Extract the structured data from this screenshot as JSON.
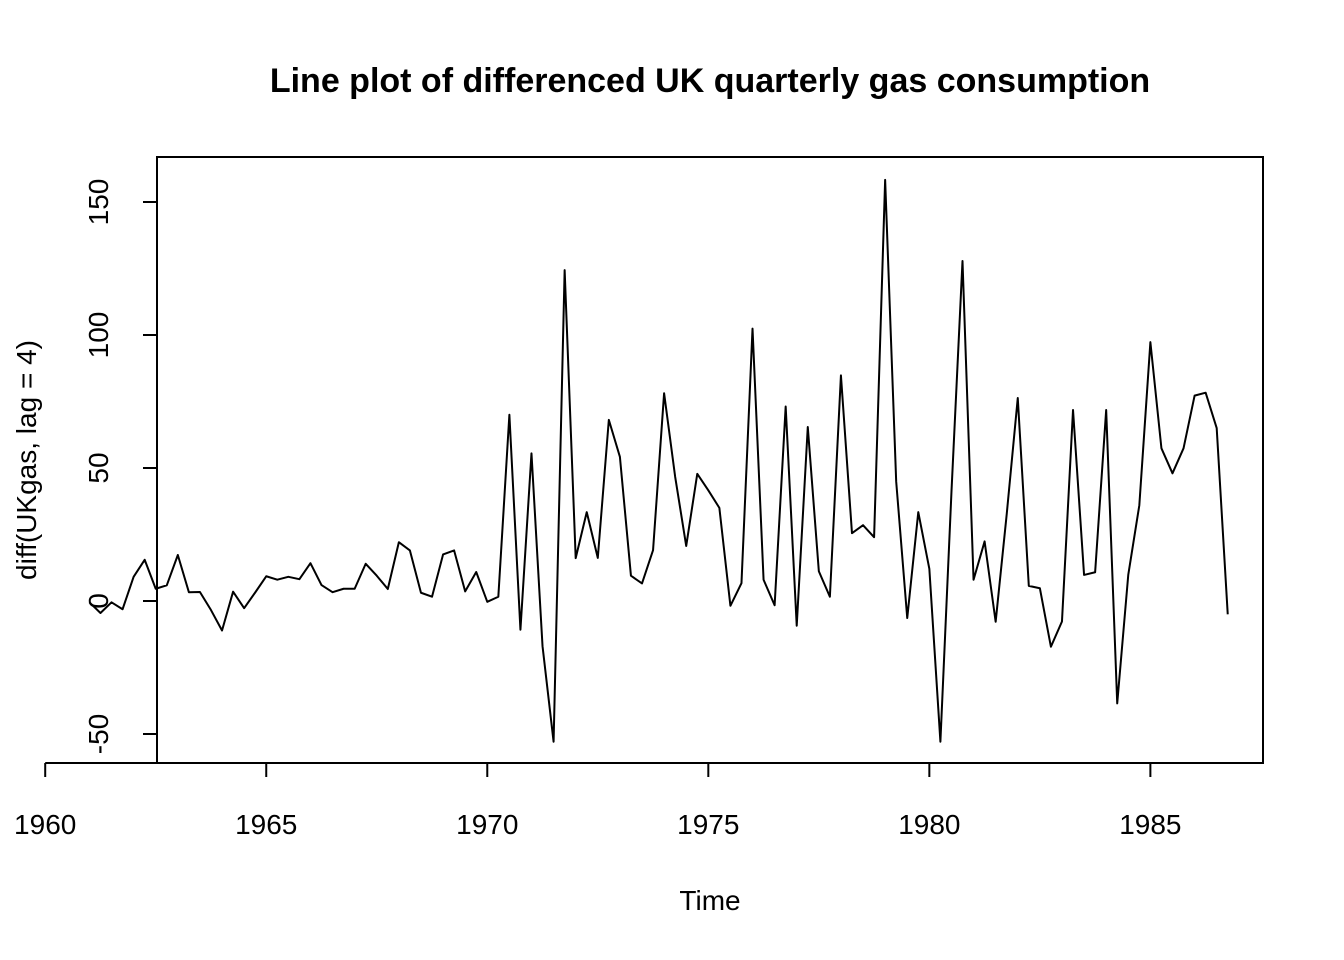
{
  "chart_data": {
    "type": "line",
    "title": "Line plot of differenced UK quarterly gas consumption",
    "xlabel": "Time",
    "ylabel": "diff(UKgas, lag = 4)",
    "xlim": [
      1960,
      1987
    ],
    "ylim": [
      -60,
      167
    ],
    "x_ticks": [
      1960,
      1965,
      1970,
      1975,
      1980,
      1985
    ],
    "y_ticks": [
      -50,
      0,
      50,
      100,
      150
    ],
    "x_tick_labels": [
      "1960",
      "1965",
      "1970",
      "1975",
      "1980",
      "1985"
    ],
    "y_tick_labels": [
      "-50",
      "0",
      "50",
      "100",
      "150"
    ],
    "grid": false,
    "line_color": "#000000",
    "series": [
      {
        "x_start": 1961.0,
        "frequency": 4,
        "values": [
          -0.5,
          -4.5,
          -0.5,
          -3.1,
          9.1,
          15.5,
          4.6,
          5.9,
          17.3,
          3.3,
          3.4,
          -3.4,
          -11.1,
          3.5,
          -2.7,
          3.2,
          9.3,
          8.0,
          9.1,
          8.2,
          14.2,
          6.0,
          3.3,
          4.6,
          4.6,
          14.0,
          9.5,
          4.5,
          22.1,
          19.0,
          3.1,
          1.6,
          17.5,
          19.0,
          3.6,
          10.9,
          -0.3,
          1.6,
          70.0,
          -10.8,
          55.5,
          -17.0,
          -52.9,
          124.4,
          16.1,
          33.4,
          16.2,
          68.1,
          54.2,
          9.5,
          6.6,
          19.1,
          78.1,
          46.7,
          20.7,
          47.8,
          41.6,
          35.0,
          -1.8,
          6.7,
          102.4,
          8.0,
          -1.6,
          73.1,
          -9.3,
          65.4,
          11.2,
          1.6,
          84.8,
          25.5,
          28.5,
          24.0,
          158.3,
          44.9,
          -6.4,
          33.4,
          12.1,
          -52.9,
          40.9,
          127.8,
          8.0,
          22.4,
          -7.8,
          32.6,
          76.3,
          5.7,
          4.8,
          -17.2,
          -7.7,
          71.8,
          9.8,
          10.8,
          71.8,
          -38.5,
          9.9,
          36.0,
          97.3,
          57.4,
          48.0,
          57.4,
          77.2,
          78.3,
          65.0,
          -5.0
        ]
      }
    ]
  }
}
